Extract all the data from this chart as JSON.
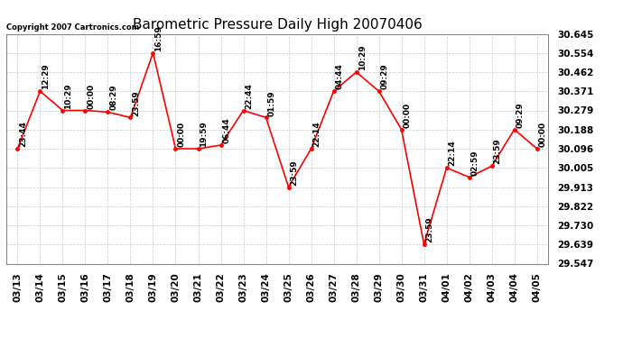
{
  "title": "Barometric Pressure Daily High 20070406",
  "copyright": "Copyright 2007 Cartronics.com",
  "x_labels": [
    "03/13",
    "03/14",
    "03/15",
    "03/16",
    "03/17",
    "03/18",
    "03/19",
    "03/20",
    "03/21",
    "03/22",
    "03/23",
    "03/24",
    "03/25",
    "03/26",
    "03/27",
    "03/28",
    "03/29",
    "03/30",
    "03/31",
    "04/01",
    "04/02",
    "04/03",
    "04/04",
    "04/05"
  ],
  "y_values": [
    30.096,
    30.371,
    30.279,
    30.279,
    30.271,
    30.245,
    30.554,
    30.096,
    30.096,
    30.113,
    30.279,
    30.245,
    29.913,
    30.096,
    30.371,
    30.462,
    30.371,
    30.188,
    29.639,
    30.005,
    29.96,
    30.013,
    30.188,
    30.096
  ],
  "time_labels": [
    "23:44",
    "12:29",
    "10:29",
    "00:00",
    "08:29",
    "23:59",
    "16:59",
    "00:00",
    "19:59",
    "06:44",
    "22:44",
    "01:59",
    "23:59",
    "22:14",
    "04:44",
    "10:29",
    "09:29",
    "00:00",
    "23:59",
    "22:14",
    "02:59",
    "23:59",
    "09:29",
    "00:00"
  ],
  "ylim_min": 29.547,
  "ylim_max": 30.645,
  "yticks": [
    29.547,
    29.639,
    29.73,
    29.822,
    29.913,
    30.005,
    30.096,
    30.188,
    30.279,
    30.371,
    30.462,
    30.554,
    30.645
  ],
  "line_color": "red",
  "marker_color": "red",
  "bg_color": "#ffffff",
  "plot_bg_color": "#ffffff",
  "grid_color": "#cccccc",
  "title_fontsize": 11,
  "copyright_fontsize": 6,
  "tick_fontsize": 7.5,
  "label_fontsize": 6.5
}
